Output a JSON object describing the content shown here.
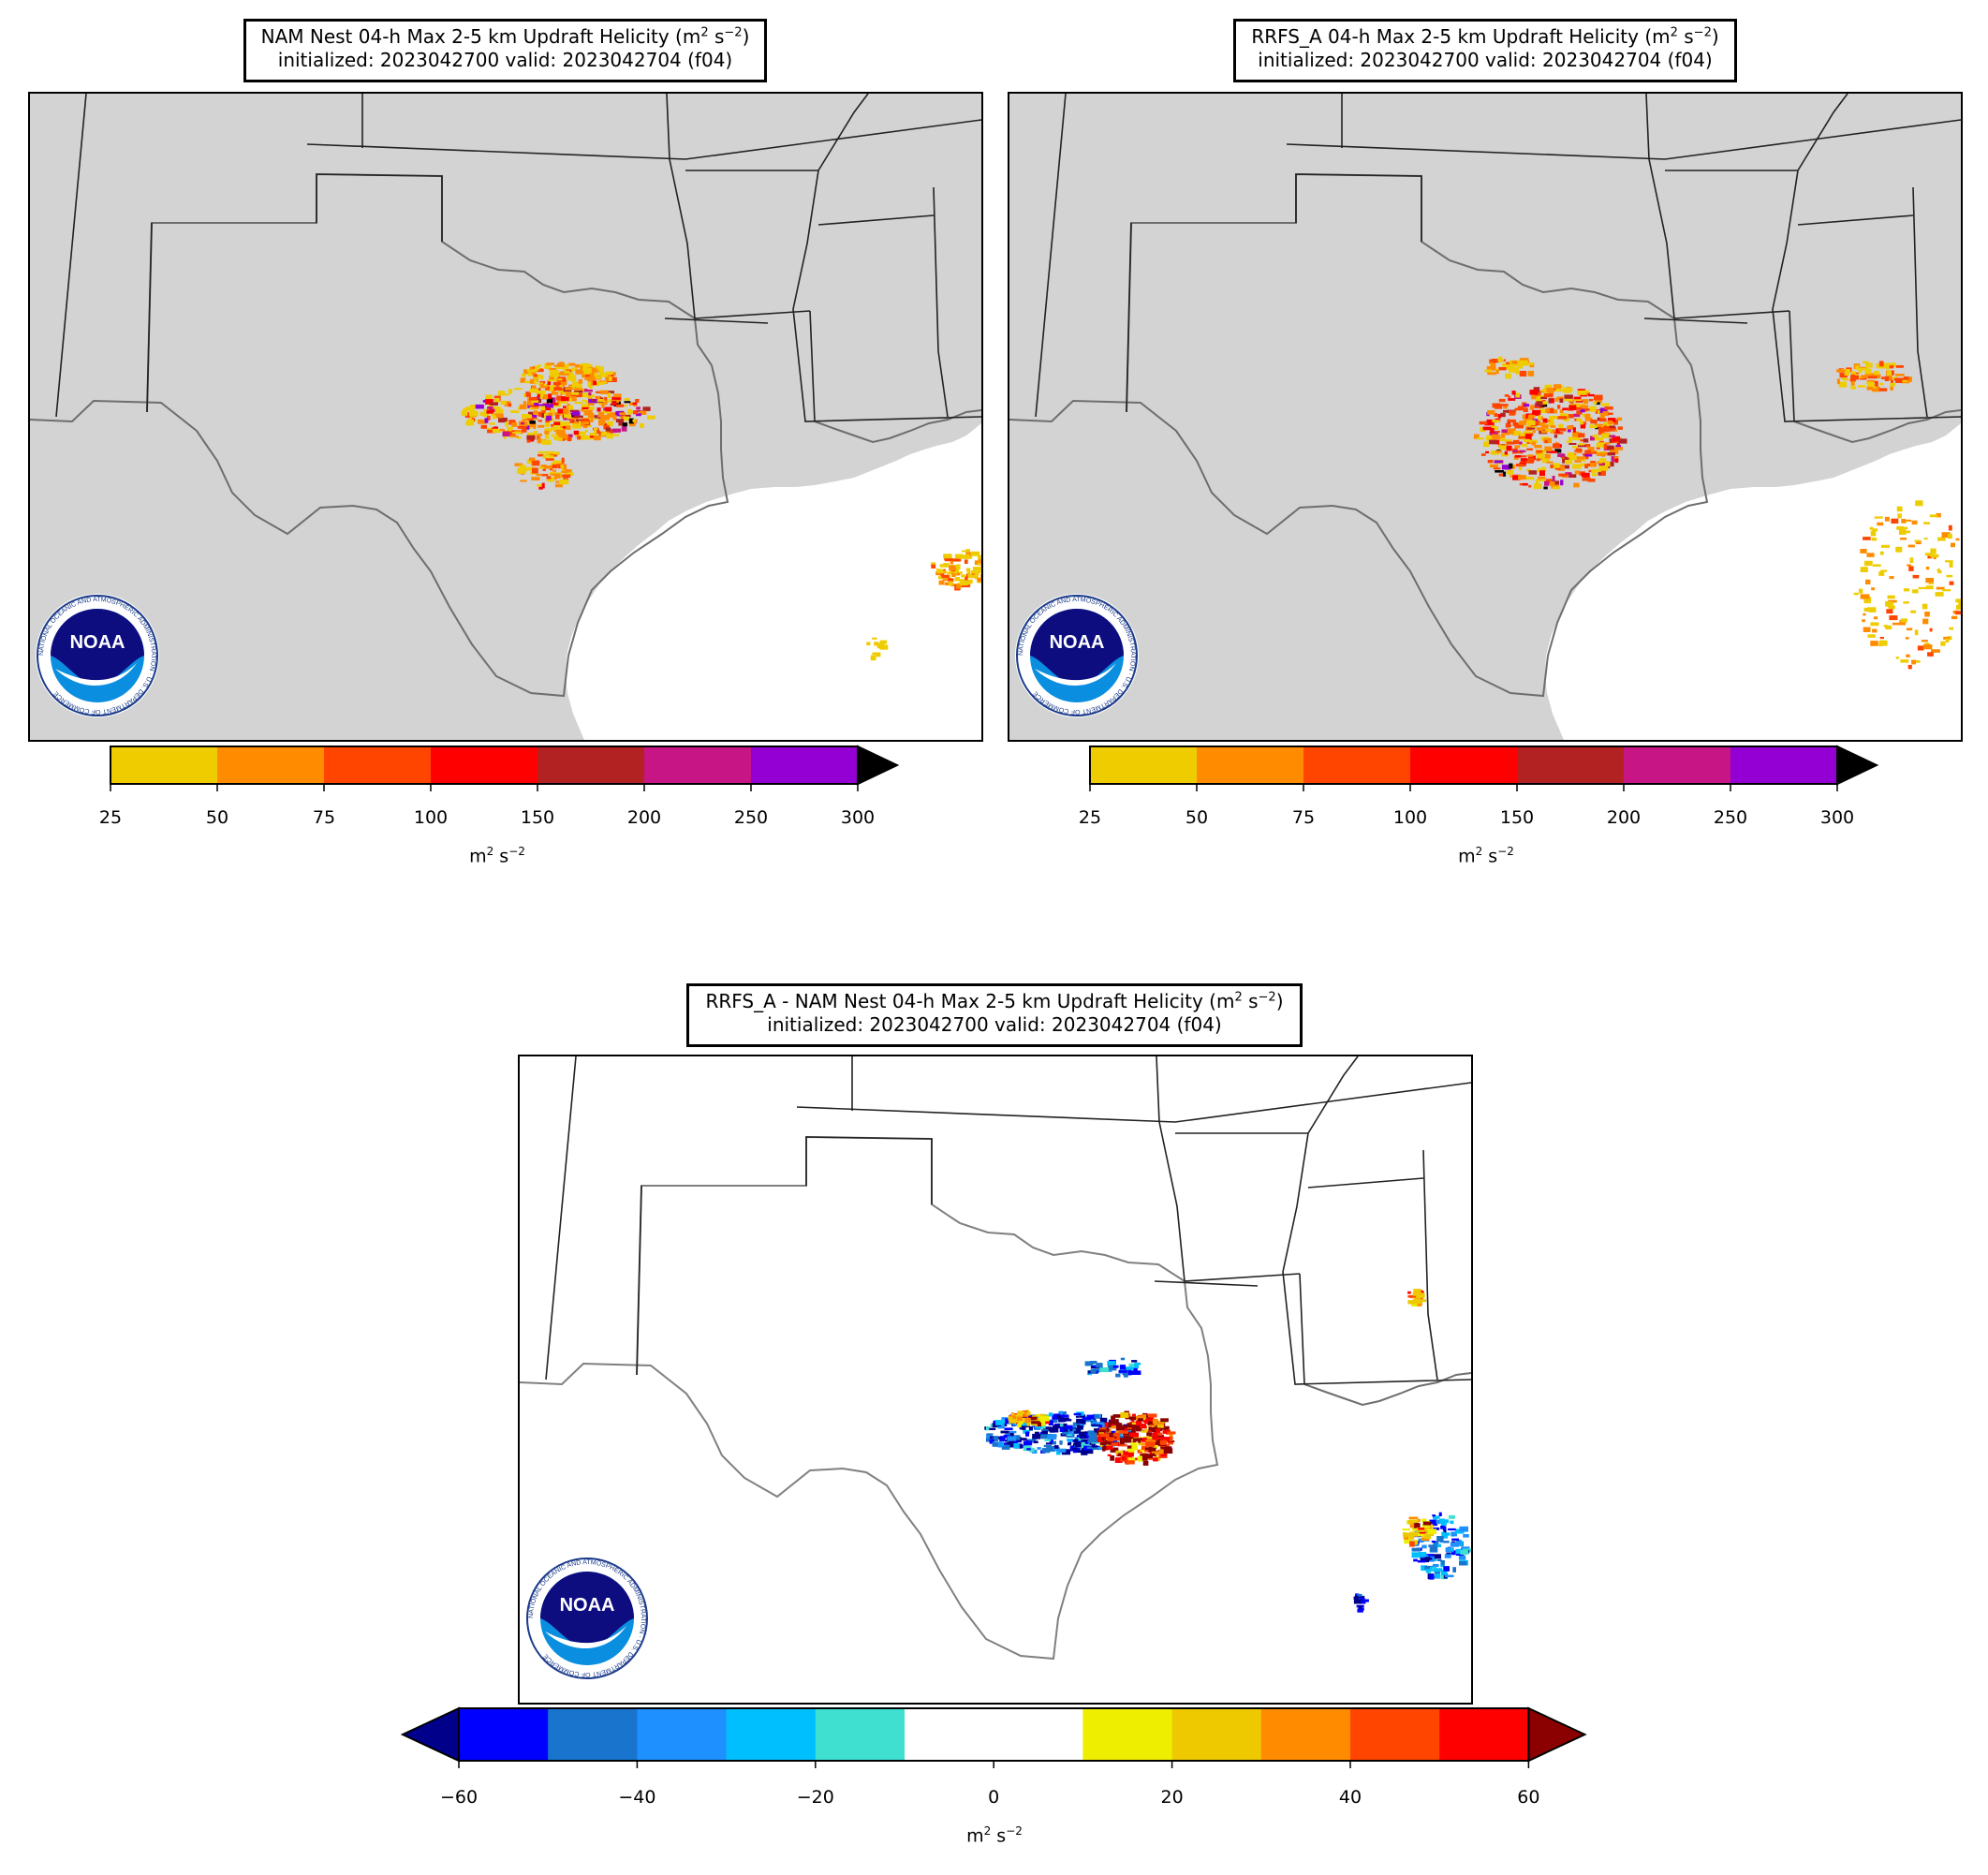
{
  "panels": [
    {
      "id": "nam",
      "title_line1_prefix": "NAM Nest 04-h Max 2-5 km Updraft Helicity (m",
      "title_line1_exp1": "2",
      "title_line1_mid": " s",
      "title_line1_exp2": "−2",
      "title_line1_suffix": ")",
      "title_line2": "initialized: 2023042700 valid: 2023042704 (f04)",
      "land_color": "#d3d3d3",
      "colorbar": {
        "ticks": [
          "25",
          "50",
          "75",
          "100",
          "150",
          "200",
          "250",
          "300"
        ],
        "colors": [
          "#eecc00",
          "#ff8c00",
          "#ff4500",
          "#ff0000",
          "#b22222",
          "#c71585",
          "#9400d3"
        ],
        "extend_color": "#000000",
        "unit_prefix": "m",
        "unit_exp1": "2",
        "unit_mid": " s",
        "unit_exp2": "−2"
      }
    },
    {
      "id": "rrfs",
      "title_line1_prefix": "RRFS_A 04-h Max 2-5 km Updraft Helicity (m",
      "title_line1_exp1": "2",
      "title_line1_mid": " s",
      "title_line1_exp2": "−2",
      "title_line1_suffix": ")",
      "title_line2": "initialized: 2023042700 valid: 2023042704 (f04)",
      "land_color": "#d3d3d3",
      "colorbar": {
        "ticks": [
          "25",
          "50",
          "75",
          "100",
          "150",
          "200",
          "250",
          "300"
        ],
        "colors": [
          "#eecc00",
          "#ff8c00",
          "#ff4500",
          "#ff0000",
          "#b22222",
          "#c71585",
          "#9400d3"
        ],
        "extend_color": "#000000",
        "unit_prefix": "m",
        "unit_exp1": "2",
        "unit_mid": " s",
        "unit_exp2": "−2"
      }
    },
    {
      "id": "diff",
      "title_line1_prefix": "RRFS_A - NAM Nest 04-h Max 2-5 km Updraft Helicity (m",
      "title_line1_exp1": "2",
      "title_line1_mid": " s",
      "title_line1_exp2": "−2",
      "title_line1_suffix": ")",
      "title_line2": "initialized: 2023042700 valid: 2023042704 (f04)",
      "land_color": "#ffffff",
      "colorbar": {
        "ticks": [
          "−60",
          "−40",
          "−20",
          "0",
          "20",
          "40",
          "60"
        ],
        "colors": [
          "#0000ff",
          "#1874cd",
          "#1e90ff",
          "#00bfff",
          "#40e0d0",
          "#ffffff",
          "#ffffff",
          "#eeee00",
          "#eec900",
          "#ff8c00",
          "#ff4500",
          "#ff0000"
        ],
        "extend_low_color": "#00008b",
        "extend_high_color": "#8b0000",
        "unit_prefix": "m",
        "unit_exp1": "2",
        "unit_mid": " s",
        "unit_exp2": "−2"
      }
    }
  ],
  "logo": {
    "text": "NOAA",
    "ring_text": "NATIONAL OCEANIC AND ATMOSPHERIC ADMINISTRATION · U.S. DEPARTMENT OF COMMERCE"
  }
}
